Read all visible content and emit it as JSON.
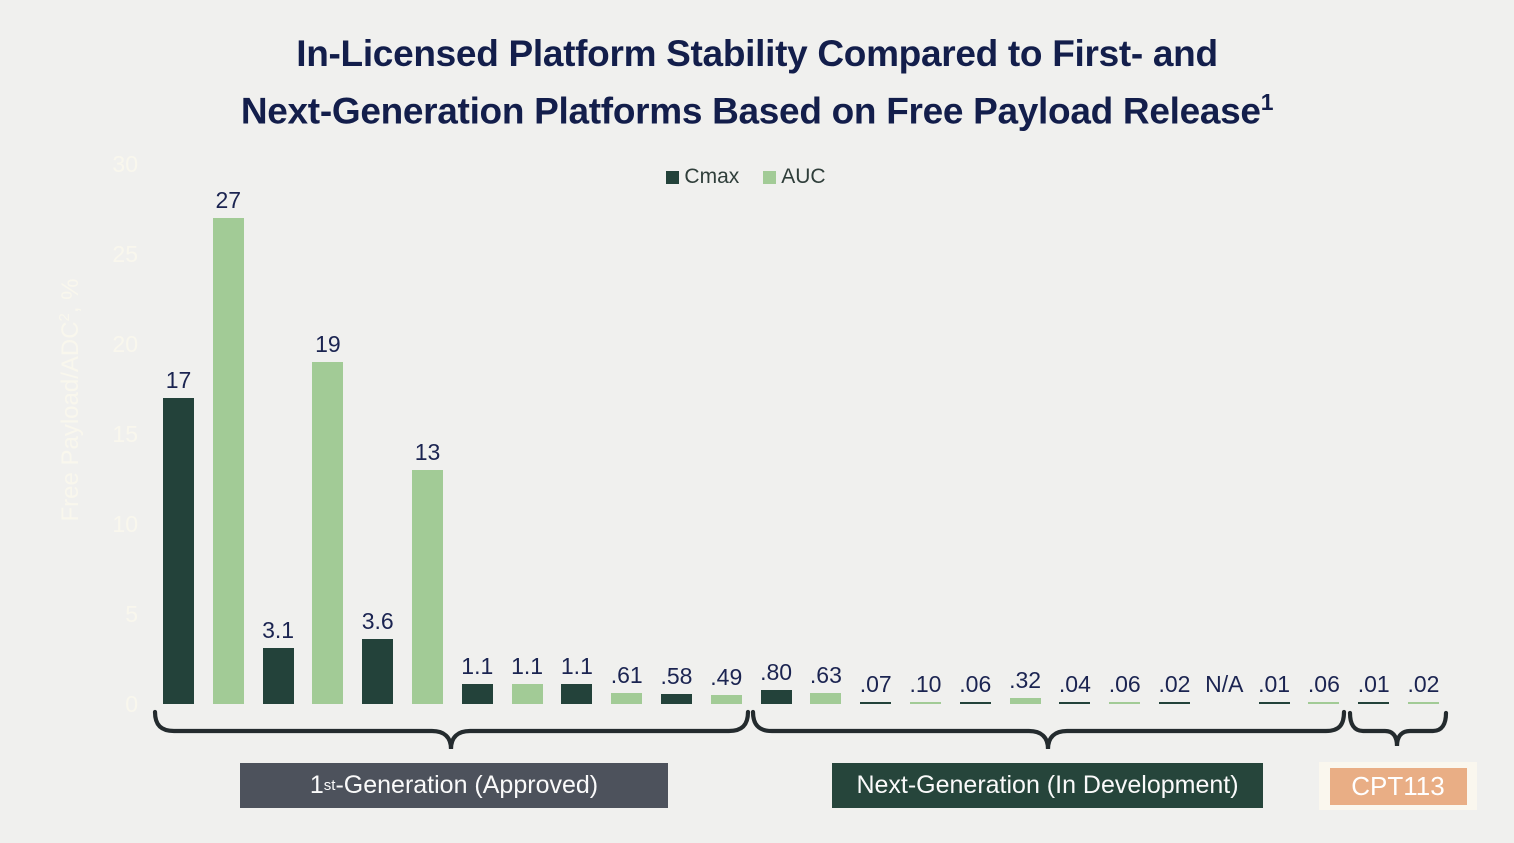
{
  "page": {
    "background": "#f0f0ee"
  },
  "title": {
    "line1": "In-Licensed Platform Stability Compared to First- and",
    "line2": "Next-Generation Platforms Based on Free Payload Release",
    "line2_sup": "1",
    "color": "#131e4b"
  },
  "legend": {
    "items": [
      {
        "label": "Cmax",
        "color": "#23423a"
      },
      {
        "label": "AUC",
        "color": "#a2cb96"
      }
    ]
  },
  "y_axis": {
    "title_main": "Free Payload/ADC",
    "title_sup": "2",
    "title_suffix": ", %",
    "tick_labels": [
      "0",
      "5",
      "10",
      "15",
      "20",
      "25",
      "30"
    ],
    "color": "#f9f7ed"
  },
  "groups": {
    "first_gen": {
      "prefix": "1",
      "sup": "st",
      "suffix": "-Generation (Approved)",
      "bg": "#4d525c"
    },
    "next_gen": {
      "label": "Next-Generation (In Development)",
      "bg": "#26453b"
    },
    "cpt113": {
      "label": "CPT113",
      "bg": "#e9ae85",
      "border": "#faf7ee"
    }
  },
  "chart_data": {
    "type": "bar",
    "title": "In-Licensed Platform Stability Compared to First- and Next-Generation Platforms Based on Free Payload Release¹",
    "xlabel": "",
    "ylabel": "Free Payload/ADC², %",
    "ylim": [
      0,
      30
    ],
    "yticks": [
      0,
      5,
      10,
      15,
      20,
      25,
      30
    ],
    "grid": false,
    "legend_position": "top-center",
    "series_colors": {
      "Cmax": "#23423a",
      "AUC": "#a2cb96"
    },
    "bars": [
      {
        "series": "Cmax",
        "value": 17,
        "label": "17"
      },
      {
        "series": "AUC",
        "value": 27,
        "label": "27"
      },
      {
        "series": "Cmax",
        "value": 3.1,
        "label": "3.1"
      },
      {
        "series": "AUC",
        "value": 19,
        "label": "19"
      },
      {
        "series": "Cmax",
        "value": 3.6,
        "label": "3.6"
      },
      {
        "series": "AUC",
        "value": 13,
        "label": "13"
      },
      {
        "series": "Cmax",
        "value": 1.1,
        "label": "1.1"
      },
      {
        "series": "AUC",
        "value": 1.1,
        "label": "1.1"
      },
      {
        "series": "Cmax",
        "value": 1.1,
        "label": "1.1"
      },
      {
        "series": "AUC",
        "value": 0.61,
        "label": ".61"
      },
      {
        "series": "Cmax",
        "value": 0.58,
        "label": ".58"
      },
      {
        "series": "AUC",
        "value": 0.49,
        "label": ".49"
      },
      {
        "series": "Cmax",
        "value": 0.8,
        "label": ".80"
      },
      {
        "series": "AUC",
        "value": 0.63,
        "label": ".63"
      },
      {
        "series": "Cmax",
        "value": 0.07,
        "label": ".07"
      },
      {
        "series": "AUC",
        "value": 0.1,
        "label": ".10"
      },
      {
        "series": "Cmax",
        "value": 0.06,
        "label": ".06"
      },
      {
        "series": "AUC",
        "value": 0.32,
        "label": ".32"
      },
      {
        "series": "Cmax",
        "value": 0.04,
        "label": ".04"
      },
      {
        "series": "AUC",
        "value": 0.06,
        "label": ".06"
      },
      {
        "series": "Cmax",
        "value": 0.02,
        "label": ".02"
      },
      {
        "series": "AUC",
        "value": null,
        "label": "N/A"
      },
      {
        "series": "Cmax",
        "value": 0.01,
        "label": ".01"
      },
      {
        "series": "AUC",
        "value": 0.06,
        "label": ".06"
      },
      {
        "series": "Cmax",
        "value": 0.01,
        "label": ".01"
      },
      {
        "series": "AUC",
        "value": 0.02,
        "label": ".02"
      }
    ],
    "bar_groups": [
      {
        "label": "1st-Generation (Approved)",
        "bar_range": [
          1,
          12
        ]
      },
      {
        "label": "Next-Generation (In Development)",
        "bar_range": [
          13,
          24
        ]
      },
      {
        "label": "CPT113",
        "bar_range": [
          25,
          26
        ]
      }
    ]
  }
}
